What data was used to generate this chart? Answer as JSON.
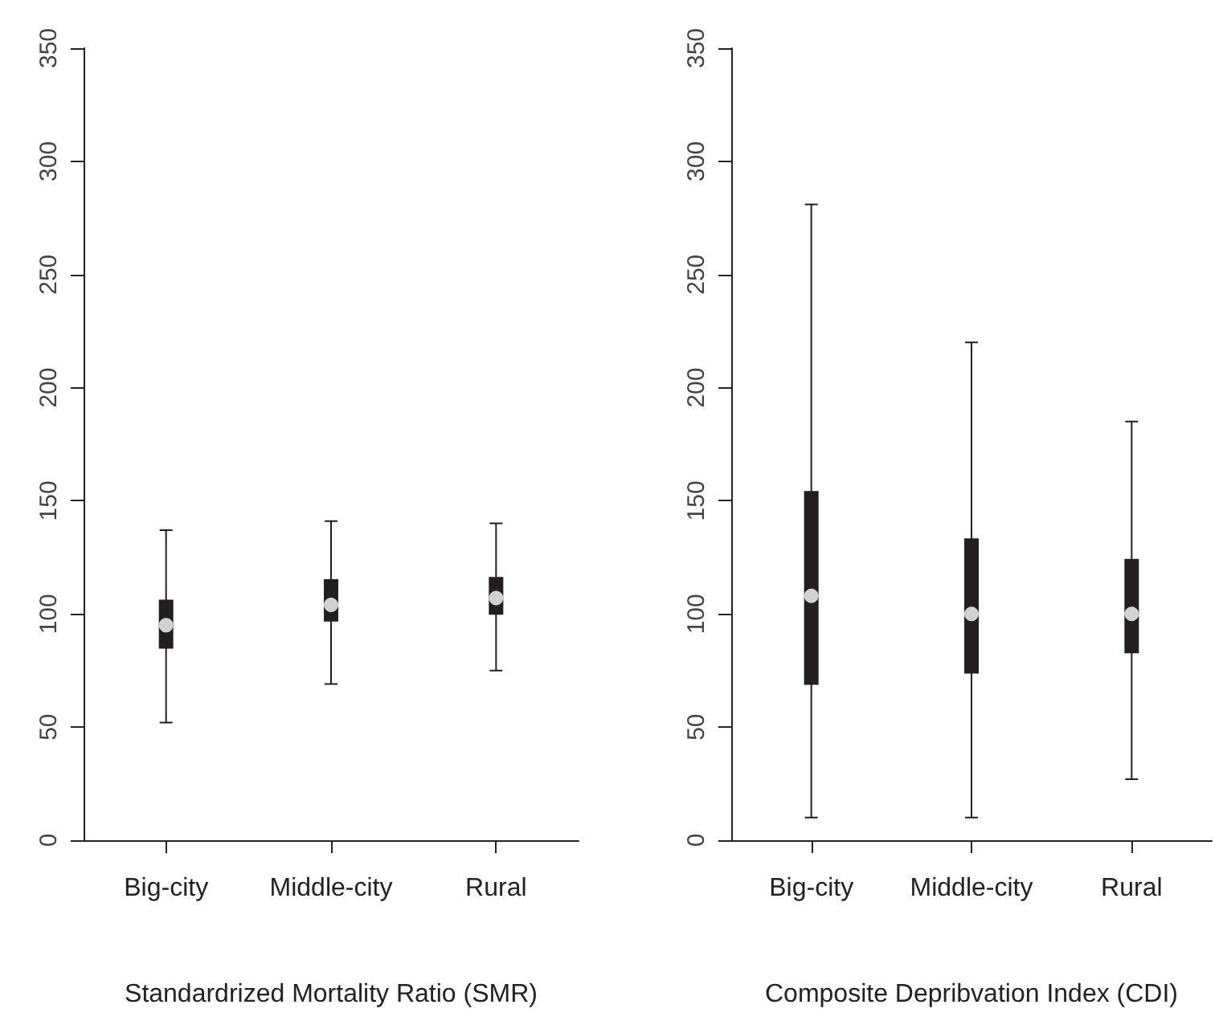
{
  "chart_data": [
    {
      "type": "box",
      "xlabel": "Standardrized Mortality Ratio (SMR)",
      "categories": [
        "Big-city",
        "Middle-city",
        "Rural"
      ],
      "color": "#231f20",
      "boxes": [
        {
          "low": 52,
          "q1": 85,
          "median": 95,
          "q3": 106,
          "high": 137
        },
        {
          "low": 69,
          "q1": 97,
          "median": 104,
          "q3": 115,
          "high": 141
        },
        {
          "low": 75,
          "q1": 100,
          "median": 107,
          "q3": 116,
          "high": 140
        }
      ],
      "ylim": [
        0,
        350
      ],
      "yticks": [
        0,
        50,
        100,
        150,
        200,
        250,
        300,
        350
      ],
      "grid": false
    },
    {
      "type": "box",
      "xlabel": "Composite Depribvation Index (CDI)",
      "categories": [
        "Big-city",
        "Middle-city",
        "Rural"
      ],
      "color": "#231f20",
      "boxes": [
        {
          "low": 10,
          "q1": 69,
          "median": 108,
          "q3": 154,
          "high": 281
        },
        {
          "low": 10,
          "q1": 74,
          "median": 100,
          "q3": 133,
          "high": 220
        },
        {
          "low": 27,
          "q1": 83,
          "median": 100,
          "q3": 124,
          "high": 185
        }
      ],
      "ylim": [
        0,
        350
      ],
      "yticks": [
        0,
        50,
        100,
        150,
        200,
        250,
        300,
        350
      ],
      "grid": false
    }
  ]
}
